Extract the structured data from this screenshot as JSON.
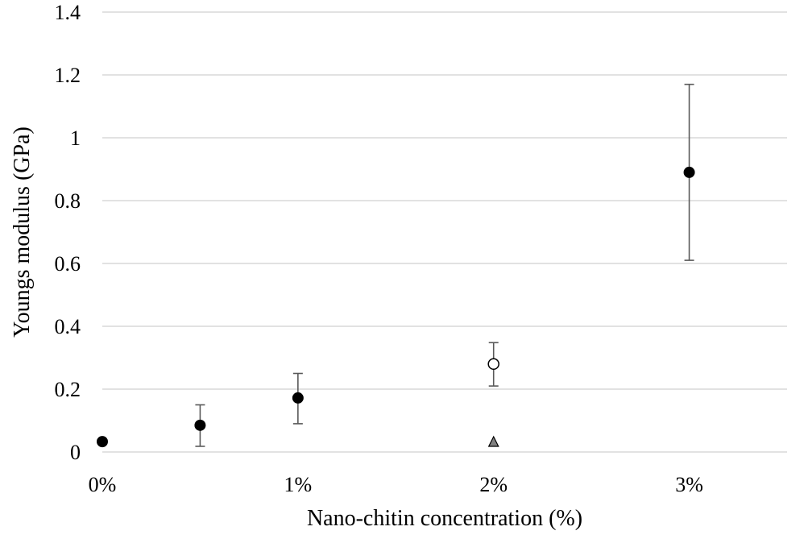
{
  "chart_data": {
    "type": "scatter",
    "title": "",
    "xlabel": "Nano-chitin concentration (%)",
    "ylabel": "Youngs modulus (GPa)",
    "xlim": [
      0,
      3.5
    ],
    "ylim": [
      0,
      1.4
    ],
    "x_ticks": [
      {
        "value": 0,
        "label": "0%"
      },
      {
        "value": 1,
        "label": "1%"
      },
      {
        "value": 2,
        "label": "2%"
      },
      {
        "value": 3,
        "label": "3%"
      }
    ],
    "y_ticks": [
      {
        "value": 0,
        "label": "0"
      },
      {
        "value": 0.2,
        "label": "0.2"
      },
      {
        "value": 0.4,
        "label": "0.4"
      },
      {
        "value": 0.6,
        "label": "0.6"
      },
      {
        "value": 0.8,
        "label": "0.8"
      },
      {
        "value": 1.0,
        "label": "1"
      },
      {
        "value": 1.2,
        "label": "1.2"
      },
      {
        "value": 1.4,
        "label": "1.4"
      }
    ],
    "grid": "horizontal",
    "legend": "none",
    "series": [
      {
        "marker": "filled-circle",
        "color": "#000000",
        "points": [
          {
            "x": 0,
            "y": 0.033
          },
          {
            "x": 0.5,
            "y": 0.085,
            "err_low": 0.018,
            "err_high": 0.15
          },
          {
            "x": 1,
            "y": 0.172,
            "err_low": 0.09,
            "err_high": 0.25
          },
          {
            "x": 3,
            "y": 0.89,
            "err_low": 0.61,
            "err_high": 1.17
          }
        ]
      },
      {
        "marker": "open-circle",
        "color": "#000000",
        "points": [
          {
            "x": 2,
            "y": 0.28,
            "err_low": 0.21,
            "err_high": 0.348
          }
        ]
      },
      {
        "marker": "triangle",
        "color": "#808080",
        "points": [
          {
            "x": 2,
            "y": 0.032
          }
        ]
      }
    ]
  }
}
